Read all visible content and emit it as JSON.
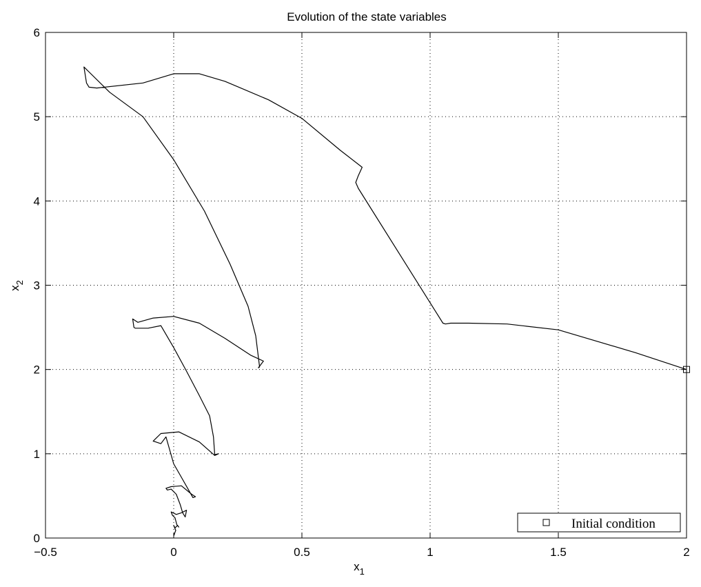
{
  "chart_data": {
    "type": "line",
    "title": "Evolution of the state variables",
    "xlabel": {
      "main": "x",
      "sub": "1"
    },
    "ylabel": {
      "main": "x",
      "sub": "2"
    },
    "xlim": [
      -0.5,
      2
    ],
    "ylim": [
      0,
      6
    ],
    "xticks": [
      -0.5,
      0,
      0.5,
      1,
      1.5,
      2
    ],
    "xtick_labels": [
      "−0.5",
      "0",
      "0.5",
      "1",
      "1.5",
      "2"
    ],
    "yticks": [
      0,
      1,
      2,
      3,
      4,
      5,
      6
    ],
    "ytick_labels": [
      "0",
      "1",
      "2",
      "3",
      "4",
      "5",
      "6"
    ],
    "grid": true,
    "legend": {
      "position": "bottom-right",
      "entries": [
        {
          "marker": "square",
          "label": "Initial condition"
        }
      ]
    },
    "initial_condition": {
      "x": 2.0,
      "y": 2.0
    },
    "trajectory": {
      "x": [
        2.0,
        1.8,
        1.5,
        1.3,
        1.15,
        1.08,
        1.06,
        1.05,
        0.72,
        0.71,
        0.72,
        0.735,
        0.65,
        0.5,
        0.37,
        0.2,
        0.1,
        0.0,
        -0.12,
        -0.3,
        -0.33,
        -0.34,
        -0.35,
        -0.25,
        -0.12,
        0.0,
        0.12,
        0.22,
        0.29,
        0.32,
        0.335,
        0.33,
        0.35,
        0.3,
        0.2,
        0.1,
        0.0,
        -0.08,
        -0.14,
        -0.16,
        -0.155,
        -0.15,
        -0.1,
        -0.05,
        0.0,
        0.05,
        0.1,
        0.14,
        0.155,
        0.16,
        0.175,
        0.16,
        0.1,
        0.02,
        -0.05,
        -0.08,
        -0.07,
        -0.05,
        -0.03,
        0.0,
        0.03,
        0.06,
        0.075,
        0.085,
        0.07,
        0.03,
        -0.01,
        -0.03,
        -0.025,
        -0.01,
        0.01,
        0.025,
        0.035,
        0.045,
        0.05,
        0.03,
        0.01,
        -0.01,
        -0.005,
        0.005,
        0.012,
        0.02,
        0.015,
        0.005,
        0.0,
        0.008,
        0.004,
        0.001
      ],
      "y": [
        2.0,
        2.2,
        2.47,
        2.54,
        2.55,
        2.55,
        2.54,
        2.55,
        4.15,
        4.22,
        4.3,
        4.4,
        4.6,
        4.98,
        5.2,
        5.42,
        5.51,
        5.51,
        5.4,
        5.34,
        5.35,
        5.4,
        5.59,
        5.29,
        5.0,
        4.49,
        3.88,
        3.25,
        2.75,
        2.4,
        2.03,
        2.02,
        2.1,
        2.17,
        2.37,
        2.55,
        2.63,
        2.61,
        2.56,
        2.6,
        2.5,
        2.49,
        2.49,
        2.52,
        2.26,
        1.98,
        1.69,
        1.45,
        1.2,
        0.99,
        1.0,
        0.98,
        1.14,
        1.26,
        1.24,
        1.15,
        1.14,
        1.12,
        1.2,
        0.88,
        0.72,
        0.56,
        0.48,
        0.49,
        0.52,
        0.62,
        0.61,
        0.59,
        0.57,
        0.58,
        0.52,
        0.4,
        0.3,
        0.25,
        0.33,
        0.3,
        0.28,
        0.31,
        0.27,
        0.24,
        0.16,
        0.13,
        0.15,
        0.12,
        0.15,
        0.09,
        0.06,
        0.03
      ]
    }
  }
}
